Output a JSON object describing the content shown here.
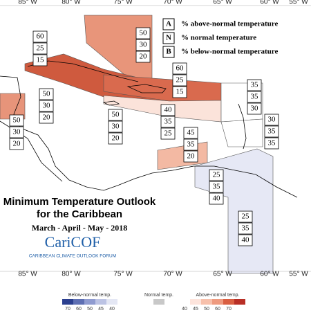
{
  "map": {
    "longitudes": [
      "85° W",
      "80° W",
      "75° W",
      "70° W",
      "65° W",
      "60° W",
      "55° W"
    ],
    "legend": [
      {
        "key": "A",
        "text": "% above-normal temperature"
      },
      {
        "key": "N",
        "text": "% normal temperature"
      },
      {
        "key": "B",
        "text": "% below-normal temperature"
      }
    ],
    "regions": [
      {
        "values": [
          "50",
          "30",
          "20"
        ]
      },
      {
        "values": [
          "60",
          "25",
          "15"
        ]
      },
      {
        "values": [
          "50",
          "30",
          "20"
        ]
      },
      {
        "values": [
          "50",
          "30",
          "20"
        ]
      },
      {
        "values": [
          "50",
          "30",
          "20"
        ]
      },
      {
        "values": [
          "60",
          "25",
          "15"
        ]
      },
      {
        "values": [
          "40",
          "35",
          "25"
        ]
      },
      {
        "values": [
          "35",
          "35",
          "30"
        ]
      },
      {
        "values": [
          "30",
          "35",
          "35"
        ]
      },
      {
        "values": [
          "45",
          "35",
          "20"
        ]
      },
      {
        "values": [
          "25",
          "35",
          "40"
        ]
      },
      {
        "values": [
          "25",
          "35",
          "40"
        ]
      }
    ],
    "title": [
      "Minimum Temperature Outlook",
      "for the Caribbean"
    ],
    "season": "March - April - May - 2018",
    "logo": "CariCOF",
    "logo_subtitle": "CARIBBEAN CLIMATE OUTLOOK FORUM",
    "colorbar": {
      "below_label": "Below-normal temp.",
      "below_ticks": [
        "70",
        "60",
        "50",
        "45",
        "40"
      ],
      "normal_label": "Normal temp.",
      "above_label": "Above-normal temp.",
      "above_ticks": [
        "40",
        "45",
        "50",
        "60",
        "70"
      ]
    }
  }
}
